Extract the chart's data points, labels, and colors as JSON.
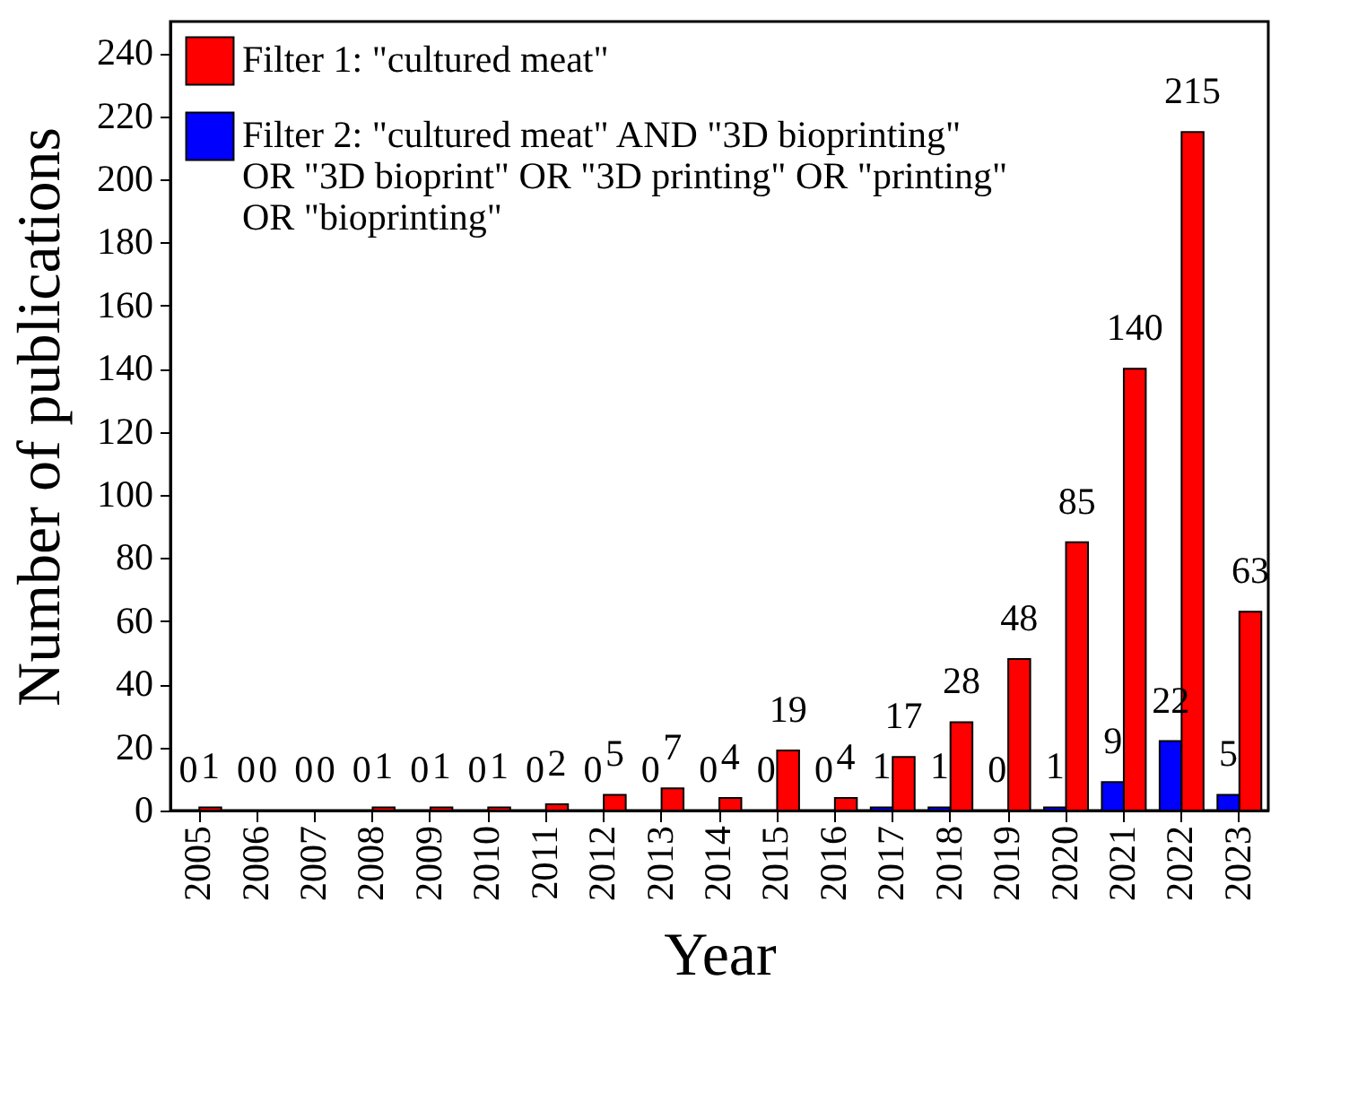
{
  "chart_data": {
    "type": "bar",
    "xlabel": "Year",
    "ylabel": "Number of publications",
    "categories": [
      "2005",
      "2006",
      "2007",
      "2008",
      "2009",
      "2010",
      "2011",
      "2012",
      "2013",
      "2014",
      "2015",
      "2016",
      "2017",
      "2018",
      "2019",
      "2020",
      "2021",
      "2022",
      "2023"
    ],
    "series": [
      {
        "name": "Filter 2: \"cultured meat\" AND \"3D bioprinting\" OR \"3D bioprint\" OR \"3D printing\" OR \"printing\" OR \"bioprinting\"",
        "color": "#0000ff",
        "values": [
          0,
          0,
          0,
          0,
          0,
          0,
          0,
          0,
          0,
          0,
          0,
          0,
          1,
          1,
          0,
          1,
          9,
          22,
          5
        ]
      },
      {
        "name": "Filter 1: \"cultured meat\"",
        "color": "#ff0000",
        "values": [
          1,
          0,
          0,
          1,
          1,
          1,
          2,
          5,
          7,
          4,
          19,
          4,
          17,
          28,
          48,
          85,
          140,
          215,
          63
        ]
      }
    ],
    "ylim": [
      0,
      250
    ],
    "yticks": [
      0,
      20,
      40,
      60,
      80,
      100,
      120,
      140,
      160,
      180,
      200,
      220,
      240
    ],
    "data_labels": true,
    "grid": false,
    "legend": "top left"
  }
}
